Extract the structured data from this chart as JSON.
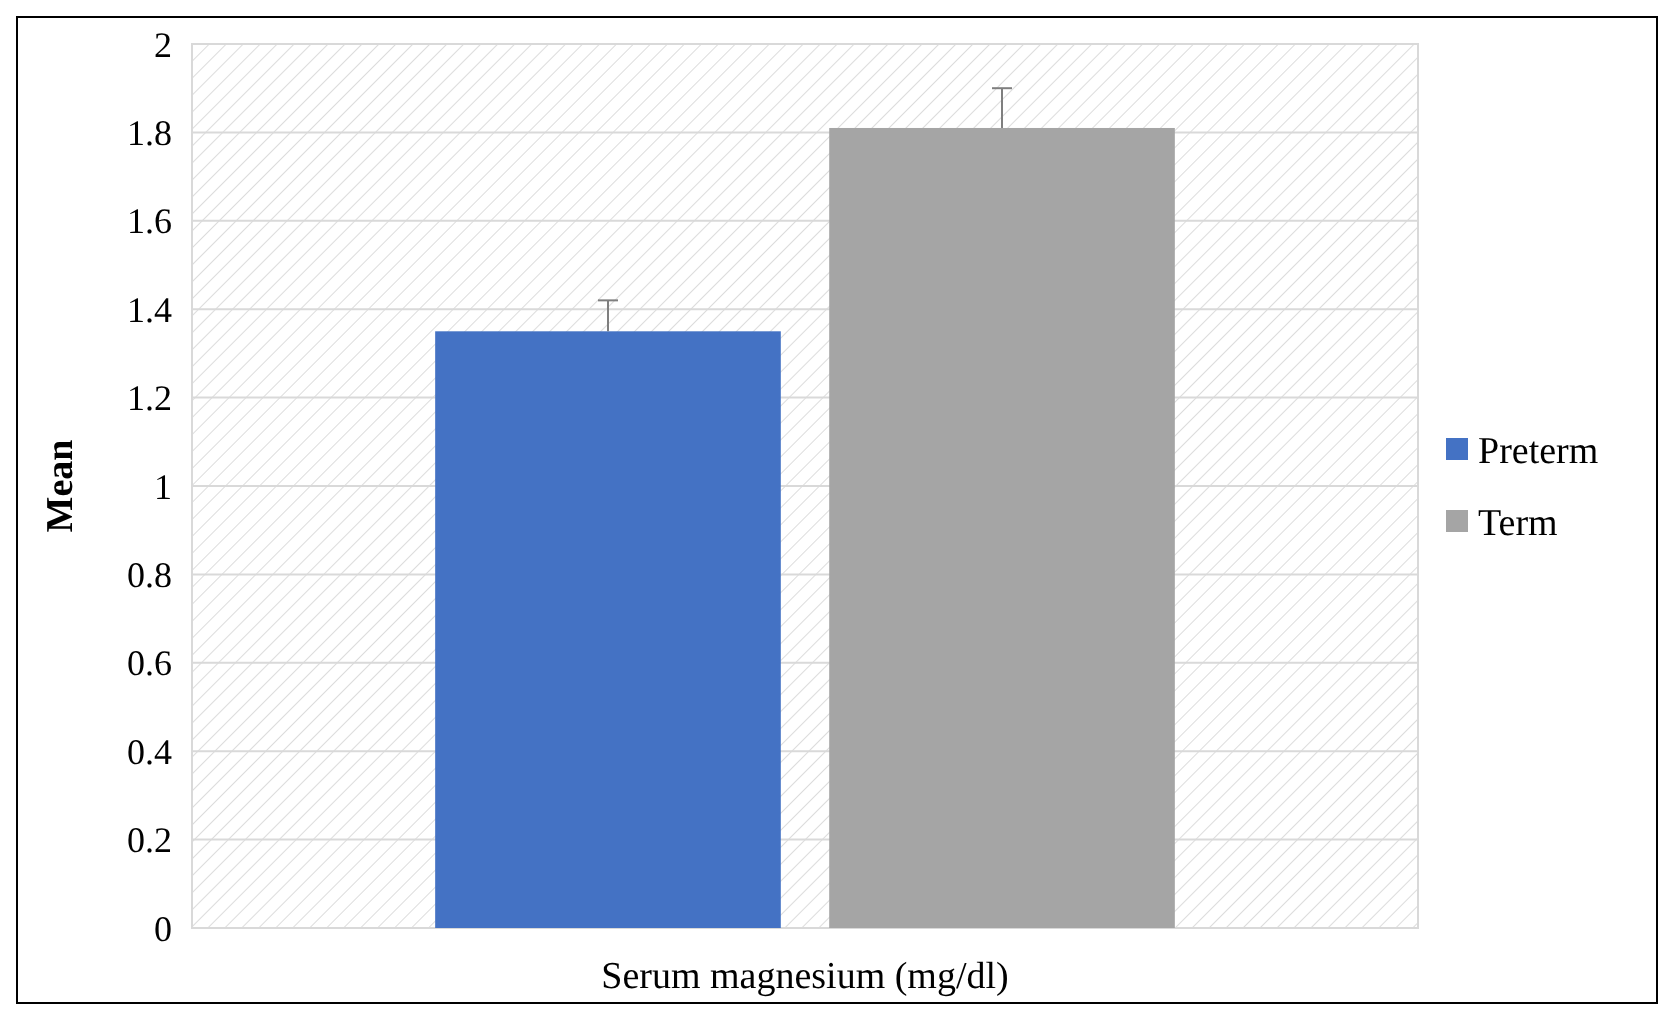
{
  "chart_data": {
    "type": "bar",
    "xlabel": "Serum magnesium (mg/dl)",
    "ylabel": "Mean",
    "categories": [
      null
    ],
    "series": [
      {
        "name": "Preterm",
        "color": "#4472c4",
        "values": [
          1.35
        ],
        "errors": [
          [
            1.35,
            1.42
          ]
        ]
      },
      {
        "name": "Term",
        "color": "#a5a5a5",
        "values": [
          1.81
        ],
        "errors": [
          [
            1.81,
            1.9
          ]
        ]
      }
    ],
    "ylim": [
      0,
      2
    ],
    "yticks": [
      0,
      0.2,
      0.4,
      0.6,
      0.8,
      1,
      1.2,
      1.4,
      1.6,
      1.8,
      2
    ],
    "grid": "y",
    "legend": "right"
  }
}
